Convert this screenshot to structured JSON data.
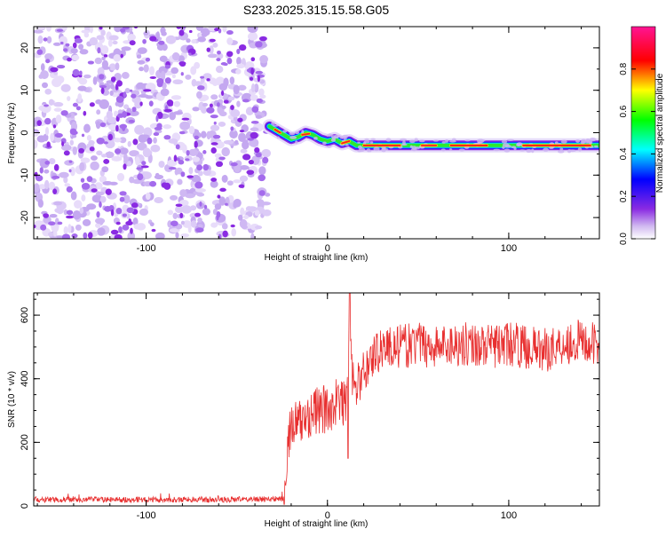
{
  "figure_title": "S233.2025.315.15.58.G05",
  "colors": {
    "snr_line": "#e83030",
    "axis": "#000000"
  },
  "chart_data": [
    {
      "type": "heatmap",
      "title": "S233.2025.315.15.58.G05",
      "xlabel": "Height of straight line (km)",
      "ylabel": "Frequency (Hz)",
      "xlim": [
        -162,
        150
      ],
      "ylim": [
        -25,
        25
      ],
      "x_ticks": [
        -100,
        0,
        100
      ],
      "x_tick_labels": [
        "-100",
        "0",
        "100"
      ],
      "y_ticks": [
        -20,
        -10,
        0,
        10,
        20
      ],
      "y_tick_labels": [
        "-20",
        "-10",
        "0",
        "10",
        "20"
      ],
      "noise_region_x": [
        -162,
        -33
      ],
      "ridge_x": [
        -32,
        -28,
        -24,
        -20,
        -16,
        -12,
        -8,
        -4,
        0,
        4,
        8,
        12,
        16,
        20,
        30,
        40,
        60,
        80,
        100,
        120,
        150
      ],
      "ridge_y": [
        1.5,
        0.5,
        -0.5,
        -1.5,
        -1.0,
        0.0,
        -0.5,
        -1.5,
        -2.0,
        -1.5,
        -2.5,
        -2.0,
        -3.0,
        -3.0,
        -3.0,
        -3.0,
        -3.0,
        -3.0,
        -3.0,
        -3.0,
        -3.0
      ],
      "colorbar": {
        "label": "Normalized spectral amplitude",
        "range": [
          0,
          1
        ],
        "ticks": [
          0.0,
          0.2,
          0.4,
          0.6,
          0.8
        ],
        "tick_labels": [
          "0.0",
          "0.2",
          "0.4",
          "0.6",
          "0.8"
        ],
        "colormap": [
          "#ffffff",
          "#8a2be2",
          "#0000ff",
          "#00ffff",
          "#00ff00",
          "#ffff00",
          "#ff0000",
          "#ff1493"
        ]
      }
    },
    {
      "type": "line",
      "title": "",
      "xlabel": "Height of straight line (km)",
      "ylabel": "SNR (10 * v/v)",
      "xlim": [
        -162,
        150
      ],
      "ylim": [
        0,
        670
      ],
      "x_ticks": [
        -100,
        0,
        100
      ],
      "x_tick_labels": [
        "-100",
        "0",
        "100"
      ],
      "y_ticks": [
        0,
        200,
        400,
        600
      ],
      "y_tick_labels": [
        "0",
        "200",
        "400",
        "600"
      ],
      "series": [
        {
          "name": "SNR",
          "x": [
            -162,
            -100,
            -60,
            -24,
            -22,
            -20,
            -15,
            -10,
            -5,
            0,
            5,
            10,
            12,
            15,
            20,
            25,
            30,
            40,
            50,
            60,
            70,
            80,
            90,
            100,
            110,
            120,
            130,
            140,
            150
          ],
          "values": [
            20,
            20,
            20,
            22,
            200,
            250,
            260,
            290,
            300,
            300,
            330,
            320,
            500,
            360,
            420,
            470,
            500,
            500,
            510,
            500,
            510,
            510,
            500,
            510,
            500,
            490,
            510,
            520,
            500
          ]
        }
      ]
    }
  ]
}
